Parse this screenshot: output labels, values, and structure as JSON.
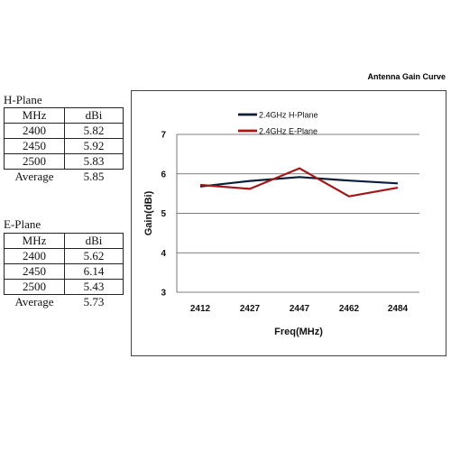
{
  "tables": [
    {
      "title": "H-Plane",
      "headers": [
        "MHz",
        "dBi"
      ],
      "rows": [
        [
          "2400",
          "5.82"
        ],
        [
          "2450",
          "5.92"
        ],
        [
          "2500",
          "5.83"
        ]
      ],
      "average_label": "Average",
      "average_value": "5.85"
    },
    {
      "title": "E-Plane",
      "headers": [
        "MHz",
        "dBi"
      ],
      "rows": [
        [
          "2400",
          "5.62"
        ],
        [
          "2450",
          "6.14"
        ],
        [
          "2500",
          "5.43"
        ]
      ],
      "average_label": "Average",
      "average_value": "5.73"
    }
  ],
  "chart_data": {
    "type": "line",
    "title": "Antenna Gain Curve",
    "xlabel": "Freq(MHz)",
    "ylabel": "Gain(dBi)",
    "categories": [
      "2412",
      "2427",
      "2447",
      "2462",
      "2484"
    ],
    "ylim": [
      3,
      7
    ],
    "yticks": [
      3,
      4,
      5,
      6,
      7
    ],
    "grid": true,
    "legend": "top-left",
    "series": [
      {
        "name": "2.4GHz H-Plane",
        "color": "#0b1d3a",
        "values": [
          5.68,
          5.82,
          5.92,
          5.83,
          5.76
        ]
      },
      {
        "name": "2.4GHz E-Plane",
        "color": "#a01818",
        "values": [
          5.72,
          5.62,
          6.14,
          5.43,
          5.65
        ]
      }
    ]
  }
}
